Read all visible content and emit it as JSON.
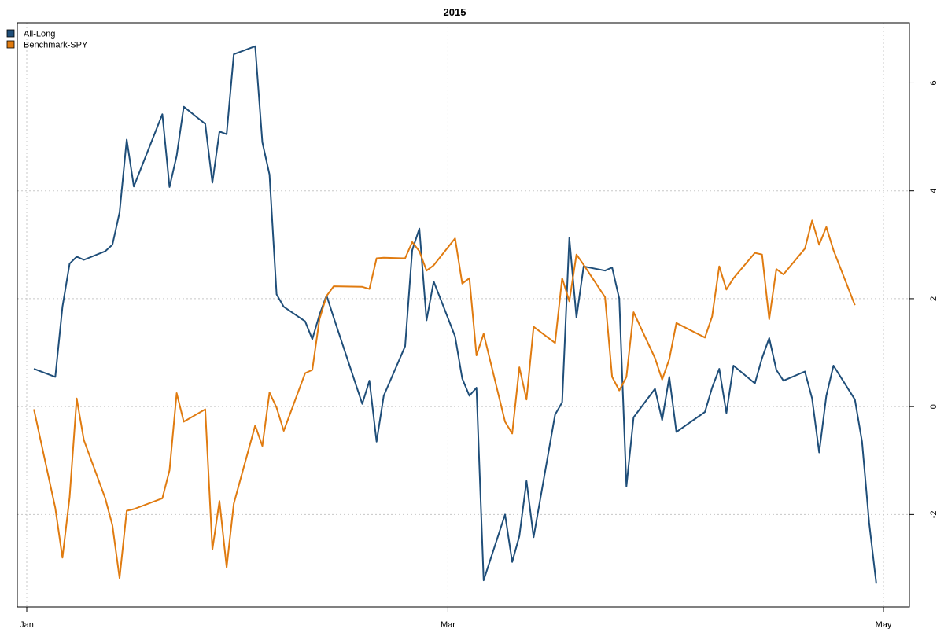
{
  "chart_data": {
    "type": "line",
    "title": "2015",
    "xlabel": "",
    "ylabel": "",
    "x_axis": {
      "type": "date",
      "range": [
        "2015-01-01",
        "2015-05-01"
      ],
      "ticks": [
        {
          "date": "2015-01-01",
          "label": "Jan"
        },
        {
          "date": "2015-03-01",
          "label": "Mar"
        },
        {
          "date": "2015-05-01",
          "label": "May"
        }
      ]
    },
    "y_axis": {
      "position": "right",
      "range": [
        -3.7,
        7.1
      ],
      "ticks": [
        -2,
        0,
        2,
        4,
        6
      ]
    },
    "grid": true,
    "legend": "top-left",
    "series": [
      {
        "name": "All-Long",
        "color": "#1f4e79",
        "points": [
          [
            "2015-01-02",
            0.7
          ],
          [
            "2015-01-05",
            0.55
          ],
          [
            "2015-01-06",
            1.85
          ],
          [
            "2015-01-07",
            2.65
          ],
          [
            "2015-01-08",
            2.78
          ],
          [
            "2015-01-09",
            2.72
          ],
          [
            "2015-01-12",
            2.88
          ],
          [
            "2015-01-13",
            3.0
          ],
          [
            "2015-01-14",
            3.6
          ],
          [
            "2015-01-15",
            4.95
          ],
          [
            "2015-01-16",
            4.08
          ],
          [
            "2015-01-20",
            5.42
          ],
          [
            "2015-01-21",
            4.07
          ],
          [
            "2015-01-22",
            4.65
          ],
          [
            "2015-01-23",
            5.56
          ],
          [
            "2015-01-26",
            5.24
          ],
          [
            "2015-01-27",
            4.15
          ],
          [
            "2015-01-28",
            5.1
          ],
          [
            "2015-01-29",
            5.05
          ],
          [
            "2015-01-30",
            6.53
          ],
          [
            "2015-02-02",
            6.68
          ],
          [
            "2015-02-03",
            4.9
          ],
          [
            "2015-02-04",
            4.3
          ],
          [
            "2015-02-05",
            2.08
          ],
          [
            "2015-02-06",
            1.85
          ],
          [
            "2015-02-09",
            1.58
          ],
          [
            "2015-02-10",
            1.25
          ],
          [
            "2015-02-11",
            1.7
          ],
          [
            "2015-02-12",
            2.06
          ],
          [
            "2015-02-13",
            1.65
          ],
          [
            "2015-02-17",
            0.05
          ],
          [
            "2015-02-18",
            0.48
          ],
          [
            "2015-02-19",
            -0.65
          ],
          [
            "2015-02-20",
            0.2
          ],
          [
            "2015-02-23",
            1.12
          ],
          [
            "2015-02-24",
            2.9
          ],
          [
            "2015-02-25",
            3.3
          ],
          [
            "2015-02-26",
            1.6
          ],
          [
            "2015-02-27",
            2.32
          ],
          [
            "2015-03-02",
            1.3
          ],
          [
            "2015-03-03",
            0.52
          ],
          [
            "2015-03-04",
            0.2
          ],
          [
            "2015-03-05",
            0.35
          ],
          [
            "2015-03-06",
            -3.22
          ],
          [
            "2015-03-09",
            -2.0
          ],
          [
            "2015-03-10",
            -2.88
          ],
          [
            "2015-03-11",
            -2.4
          ],
          [
            "2015-03-12",
            -1.38
          ],
          [
            "2015-03-13",
            -2.42
          ],
          [
            "2015-03-16",
            -0.15
          ],
          [
            "2015-03-17",
            0.08
          ],
          [
            "2015-03-18",
            3.13
          ],
          [
            "2015-03-19",
            1.65
          ],
          [
            "2015-03-20",
            2.6
          ],
          [
            "2015-03-23",
            2.52
          ],
          [
            "2015-03-24",
            2.58
          ],
          [
            "2015-03-25",
            2.0
          ],
          [
            "2015-03-26",
            -1.48
          ],
          [
            "2015-03-27",
            -0.2
          ],
          [
            "2015-03-30",
            0.33
          ],
          [
            "2015-03-31",
            -0.25
          ],
          [
            "2015-04-01",
            0.55
          ],
          [
            "2015-04-02",
            -0.47
          ],
          [
            "2015-04-06",
            -0.1
          ],
          [
            "2015-04-07",
            0.35
          ],
          [
            "2015-04-08",
            0.7
          ],
          [
            "2015-04-09",
            -0.12
          ],
          [
            "2015-04-10",
            0.76
          ],
          [
            "2015-04-13",
            0.43
          ],
          [
            "2015-04-14",
            0.9
          ],
          [
            "2015-04-15",
            1.27
          ],
          [
            "2015-04-16",
            0.68
          ],
          [
            "2015-04-17",
            0.48
          ],
          [
            "2015-04-20",
            0.65
          ],
          [
            "2015-04-21",
            0.15
          ],
          [
            "2015-04-22",
            -0.85
          ],
          [
            "2015-04-23",
            0.2
          ],
          [
            "2015-04-24",
            0.76
          ],
          [
            "2015-04-27",
            0.13
          ],
          [
            "2015-04-28",
            -0.65
          ],
          [
            "2015-04-29",
            -2.15
          ],
          [
            "2015-04-30",
            -3.28
          ]
        ]
      },
      {
        "name": "Benchmark-SPY",
        "color": "#e07b10",
        "points": [
          [
            "2015-01-02",
            -0.05
          ],
          [
            "2015-01-05",
            -1.88
          ],
          [
            "2015-01-06",
            -2.8
          ],
          [
            "2015-01-07",
            -1.68
          ],
          [
            "2015-01-08",
            0.15
          ],
          [
            "2015-01-09",
            -0.62
          ],
          [
            "2015-01-12",
            -1.7
          ],
          [
            "2015-01-13",
            -2.2
          ],
          [
            "2015-01-14",
            -3.18
          ],
          [
            "2015-01-15",
            -1.93
          ],
          [
            "2015-01-16",
            -1.9
          ],
          [
            "2015-01-20",
            -1.7
          ],
          [
            "2015-01-21",
            -1.18
          ],
          [
            "2015-01-22",
            0.25
          ],
          [
            "2015-01-23",
            -0.28
          ],
          [
            "2015-01-26",
            -0.05
          ],
          [
            "2015-01-27",
            -2.65
          ],
          [
            "2015-01-28",
            -1.75
          ],
          [
            "2015-01-29",
            -2.98
          ],
          [
            "2015-01-30",
            -1.8
          ],
          [
            "2015-02-02",
            -0.35
          ],
          [
            "2015-02-03",
            -0.73
          ],
          [
            "2015-02-04",
            0.26
          ],
          [
            "2015-02-05",
            -0.02
          ],
          [
            "2015-02-06",
            -0.45
          ],
          [
            "2015-02-09",
            0.62
          ],
          [
            "2015-02-10",
            0.68
          ],
          [
            "2015-02-11",
            1.62
          ],
          [
            "2015-02-12",
            2.05
          ],
          [
            "2015-02-13",
            2.23
          ],
          [
            "2015-02-17",
            2.22
          ],
          [
            "2015-02-18",
            2.18
          ],
          [
            "2015-02-19",
            2.75
          ],
          [
            "2015-02-20",
            2.76
          ],
          [
            "2015-02-23",
            2.75
          ],
          [
            "2015-02-24",
            3.05
          ],
          [
            "2015-02-25",
            2.88
          ],
          [
            "2015-02-26",
            2.52
          ],
          [
            "2015-02-27",
            2.62
          ],
          [
            "2015-03-02",
            3.12
          ],
          [
            "2015-03-03",
            2.28
          ],
          [
            "2015-03-04",
            2.38
          ],
          [
            "2015-03-05",
            0.95
          ],
          [
            "2015-03-06",
            1.35
          ],
          [
            "2015-03-09",
            -0.28
          ],
          [
            "2015-03-10",
            -0.5
          ],
          [
            "2015-03-11",
            0.73
          ],
          [
            "2015-03-12",
            0.13
          ],
          [
            "2015-03-13",
            1.48
          ],
          [
            "2015-03-16",
            1.18
          ],
          [
            "2015-03-17",
            2.38
          ],
          [
            "2015-03-18",
            1.95
          ],
          [
            "2015-03-19",
            2.82
          ],
          [
            "2015-03-20",
            2.63
          ],
          [
            "2015-03-23",
            2.03
          ],
          [
            "2015-03-24",
            0.55
          ],
          [
            "2015-03-25",
            0.3
          ],
          [
            "2015-03-26",
            0.55
          ],
          [
            "2015-03-27",
            1.75
          ],
          [
            "2015-03-30",
            0.9
          ],
          [
            "2015-03-31",
            0.5
          ],
          [
            "2015-04-01",
            0.88
          ],
          [
            "2015-04-02",
            1.55
          ],
          [
            "2015-04-06",
            1.28
          ],
          [
            "2015-04-07",
            1.67
          ],
          [
            "2015-04-08",
            2.6
          ],
          [
            "2015-04-09",
            2.17
          ],
          [
            "2015-04-10",
            2.38
          ],
          [
            "2015-04-13",
            2.85
          ],
          [
            "2015-04-14",
            2.82
          ],
          [
            "2015-04-15",
            1.62
          ],
          [
            "2015-04-16",
            2.55
          ],
          [
            "2015-04-17",
            2.45
          ],
          [
            "2015-04-20",
            2.93
          ],
          [
            "2015-04-21",
            3.45
          ],
          [
            "2015-04-22",
            3.0
          ],
          [
            "2015-04-23",
            3.33
          ],
          [
            "2015-04-24",
            2.9
          ],
          [
            "2015-04-27",
            1.88
          ]
        ]
      }
    ]
  }
}
